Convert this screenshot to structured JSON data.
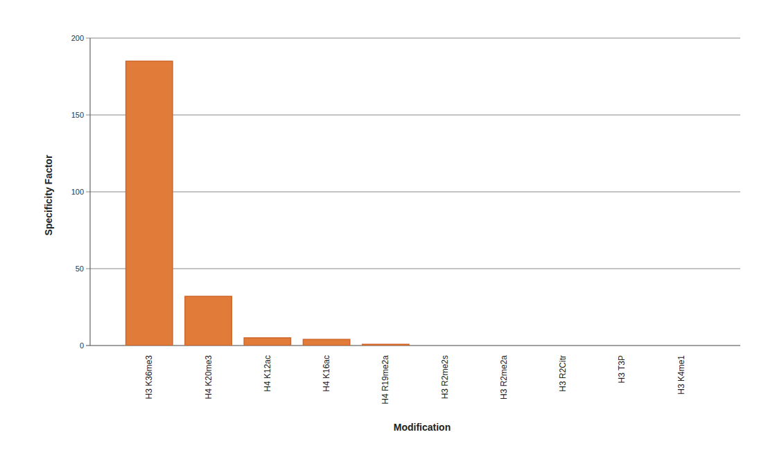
{
  "chart_data": {
    "type": "bar",
    "x_label": "Modification",
    "y_label": "Specificity Factor",
    "categories": [
      "H3 K36me3",
      "H4 K20me3",
      "H4 K12ac",
      "H4 K16ac",
      "H4 R19me2a",
      "H3 R2me2s",
      "H3 R2me2a",
      "H3 R2Citr",
      "H3 T3P",
      "H3 K4me1"
    ],
    "values": [
      185,
      32,
      5,
      4,
      0.8,
      0,
      0,
      0,
      0,
      0
    ],
    "color": "#e07b39",
    "ylim": [
      0,
      200
    ],
    "yticks": [
      0,
      50,
      100,
      150,
      200
    ],
    "grid": true
  }
}
